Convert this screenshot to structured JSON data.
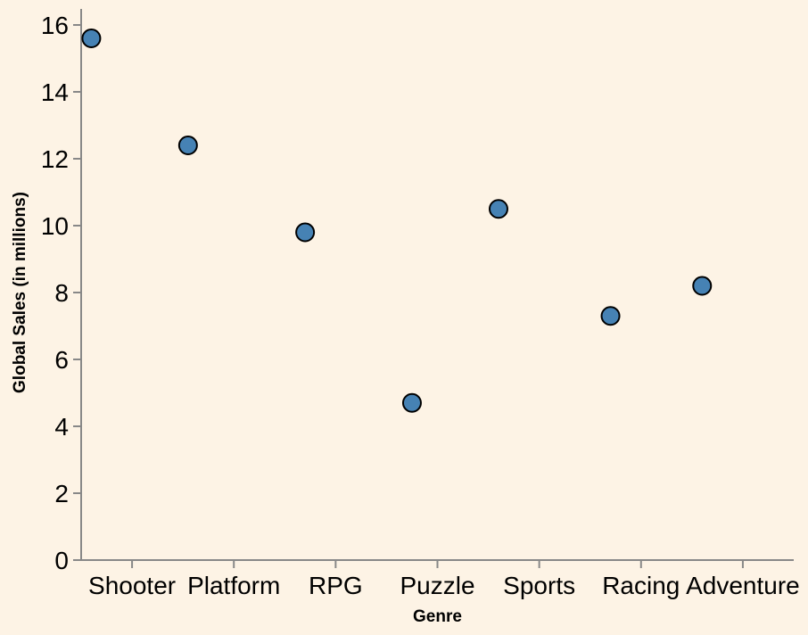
{
  "chart_data": {
    "type": "scatter",
    "title": "",
    "xlabel": "Genre",
    "ylabel": "Global Sales (in millions)",
    "categories": [
      "Shooter",
      "Platform",
      "RPG",
      "Puzzle",
      "Sports",
      "Racing",
      "Adventure"
    ],
    "y_ticks": [
      "0",
      "2",
      "4",
      "6",
      "8",
      "10",
      "12",
      "14",
      "16"
    ],
    "ylim": [
      0,
      16
    ],
    "grid": false,
    "legend": "none",
    "points": [
      {
        "x": "Shooter",
        "y": 15.6
      },
      {
        "x": "Platform",
        "y": 12.4
      },
      {
        "x": "RPG",
        "y": 9.8
      },
      {
        "x": "Puzzle",
        "y": 4.7
      },
      {
        "x": "Sports",
        "y": 10.5
      },
      {
        "x": "Racing",
        "y": 7.3
      },
      {
        "x": "Adventure",
        "y": 8.2
      }
    ],
    "colors": {
      "background": "#fdf3e5",
      "point_fill": "#4682b4",
      "point_stroke": "#000000",
      "axis": "#888888"
    }
  }
}
